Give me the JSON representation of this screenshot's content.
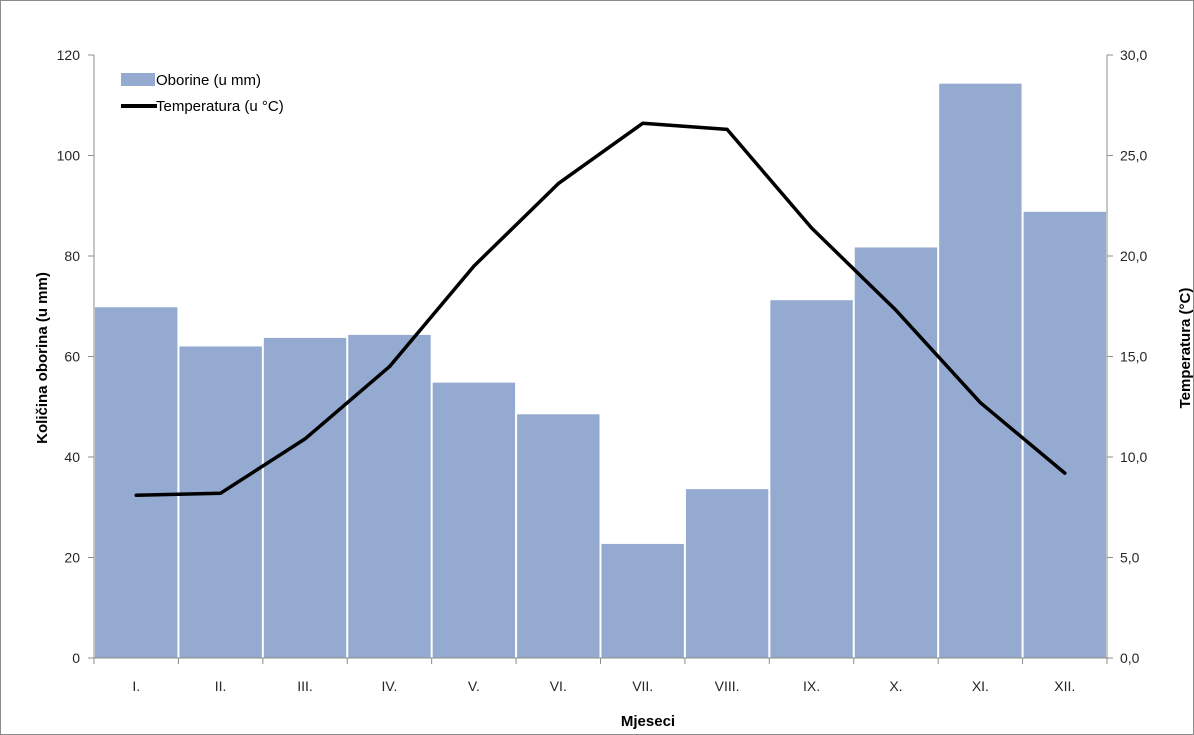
{
  "chart_data": {
    "type": "bar+line",
    "categories": [
      "I.",
      "II.",
      "III.",
      "IV.",
      "V.",
      "VI.",
      "VII.",
      "VIII.",
      "IX.",
      "X.",
      "XI.",
      "XII."
    ],
    "series": [
      {
        "name": "Oborine (u mm)",
        "kind": "bar",
        "axis": "left",
        "color": "#95aad1",
        "values": [
          69.8,
          62.0,
          63.7,
          64.3,
          54.8,
          48.5,
          22.7,
          33.6,
          71.2,
          81.7,
          114.3,
          88.8
        ]
      },
      {
        "name": "Temperatura (u °C)",
        "kind": "line",
        "axis": "right",
        "color": "#000000",
        "values": [
          8.1,
          8.2,
          10.9,
          14.5,
          19.5,
          23.6,
          26.6,
          26.3,
          21.4,
          17.3,
          12.7,
          9.2
        ]
      }
    ],
    "xlabel": "Mjeseci",
    "ylabel_left": "Količina oborina (u mm)",
    "ylabel_right": "Temperatura (°C)",
    "ylim_left": [
      0,
      120
    ],
    "ylim_right": [
      0,
      30
    ],
    "yticks_left": [
      "0",
      "20",
      "40",
      "60",
      "80",
      "100",
      "120"
    ],
    "yticks_right": [
      "0,0",
      "5,0",
      "10,0",
      "15,0",
      "20,0",
      "25,0",
      "30,0"
    ],
    "grid": false,
    "legend": "top-left"
  }
}
